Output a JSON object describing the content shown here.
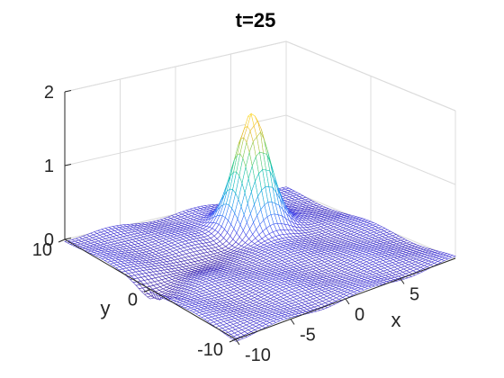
{
  "chart_data": {
    "type": "surface",
    "title": "t=25",
    "xlabel": "x",
    "ylabel": "y",
    "zlabel": "",
    "xlim": [
      -10,
      10
    ],
    "ylim": [
      -10,
      10
    ],
    "zlim": [
      0,
      2
    ],
    "x_ticks": [
      {
        "value": -10,
        "label": "-10"
      },
      {
        "value": -5,
        "label": "-5"
      },
      {
        "value": 0,
        "label": "0"
      },
      {
        "value": 5,
        "label": "5"
      }
    ],
    "y_ticks": [
      {
        "value": -10,
        "label": "-10"
      },
      {
        "value": 0,
        "label": "0"
      },
      {
        "value": 10,
        "label": "10"
      }
    ],
    "z_ticks": [
      {
        "value": 0,
        "label": "0"
      },
      {
        "value": 1,
        "label": "1"
      },
      {
        "value": 2,
        "label": "2"
      }
    ],
    "grid": true,
    "colormap": "parula",
    "surface": {
      "peak": {
        "x": 3,
        "y": 5,
        "z": 1.55
      },
      "peak_width": 1.3,
      "trough_line": {
        "from": [
          -10,
          0
        ],
        "to": [
          3,
          5
        ],
        "depth": -0.1
      },
      "background_level": 0.0
    }
  }
}
